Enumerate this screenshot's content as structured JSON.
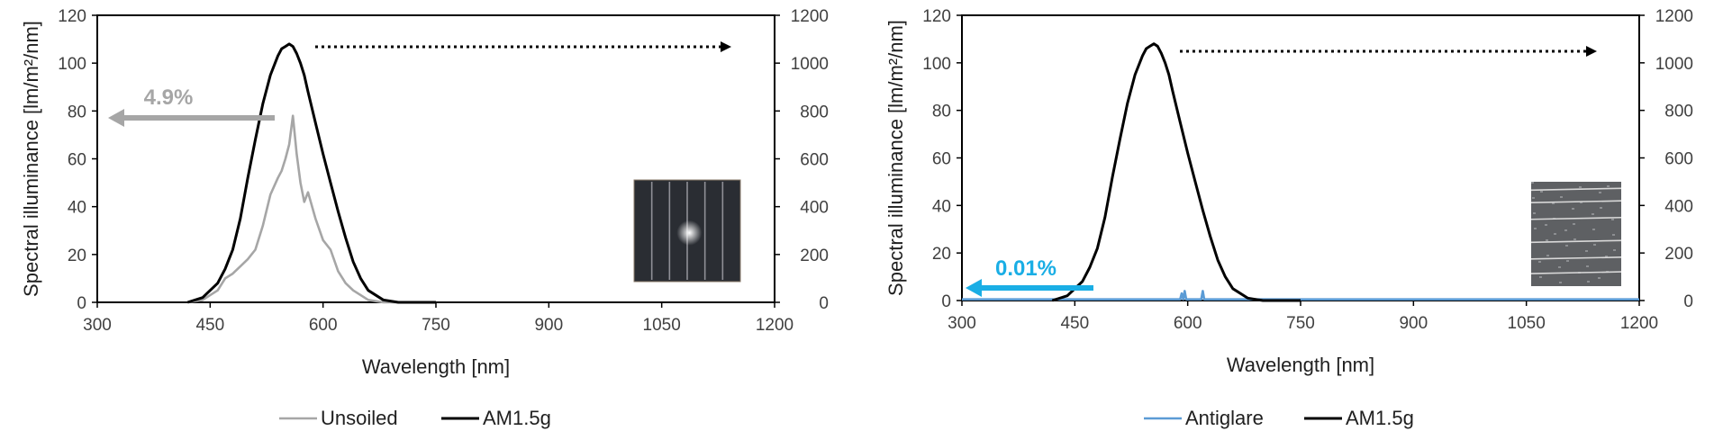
{
  "chart_data": [
    {
      "type": "line",
      "xlabel": "Wavelength [nm]",
      "ylabel": "Spectral illuminance [lm/m²/nm]",
      "xlim": [
        300,
        1200
      ],
      "ylim": [
        0,
        120
      ],
      "y2lim": [
        0,
        1200
      ],
      "xticks": [
        300,
        450,
        600,
        750,
        900,
        1050,
        1200
      ],
      "yticks": [
        0,
        20,
        40,
        60,
        80,
        100,
        120
      ],
      "y2ticks": [
        0,
        200,
        400,
        600,
        800,
        1000,
        1200
      ],
      "grid": false,
      "legend": "bottom",
      "annotation": "4.9%",
      "annotation_color": "#a6a6a6",
      "series": [
        {
          "name": "Unsoiled",
          "color": "#a6a6a6",
          "x": [
            420,
            440,
            460,
            470,
            480,
            490,
            500,
            510,
            520,
            530,
            540,
            545,
            550,
            555,
            560,
            565,
            570,
            575,
            580,
            590,
            600,
            610,
            620,
            630,
            640,
            660,
            680,
            700
          ],
          "y": [
            0,
            1,
            5,
            10,
            12,
            15,
            18,
            22,
            32,
            45,
            52,
            55,
            60,
            66,
            78,
            62,
            50,
            42,
            46,
            35,
            26,
            22,
            13,
            8,
            5,
            1,
            0,
            0
          ]
        },
        {
          "name": "AM1.5g",
          "color": "#000000",
          "x": [
            420,
            440,
            460,
            470,
            480,
            490,
            500,
            510,
            520,
            530,
            540,
            545,
            550,
            555,
            560,
            565,
            570,
            575,
            580,
            590,
            600,
            610,
            620,
            630,
            640,
            650,
            660,
            680,
            700,
            750
          ],
          "y": [
            0,
            2,
            8,
            14,
            22,
            35,
            52,
            68,
            83,
            95,
            103,
            106,
            107,
            108,
            107,
            104,
            100,
            95,
            88,
            75,
            62,
            50,
            38,
            27,
            17,
            10,
            5,
            1,
            0,
            0
          ]
        }
      ]
    },
    {
      "type": "line",
      "xlabel": "Wavelength [nm]",
      "ylabel": "Spectral illuminance [lm/m²/nm]",
      "xlim": [
        300,
        1200
      ],
      "ylim": [
        0,
        120
      ],
      "y2lim": [
        0,
        1200
      ],
      "xticks": [
        300,
        450,
        600,
        750,
        900,
        1050,
        1200
      ],
      "yticks": [
        0,
        20,
        40,
        60,
        80,
        100,
        120
      ],
      "y2ticks": [
        0,
        200,
        400,
        600,
        800,
        1000,
        1200
      ],
      "grid": false,
      "legend": "bottom",
      "annotation": "0.01%",
      "annotation_color": "#1aaee5",
      "series": [
        {
          "name": "Antiglare",
          "color": "#5b9bd5",
          "x": [
            300,
            560,
            580,
            590,
            592,
            594,
            596,
            598,
            600,
            610,
            618,
            620,
            622,
            630,
            700,
            1200
          ],
          "y": [
            0.5,
            0.5,
            0.5,
            0.5,
            3,
            0.5,
            4,
            0.5,
            0.5,
            0.5,
            0.5,
            4,
            0.5,
            0.5,
            0.5,
            0.5
          ]
        },
        {
          "name": "AM1.5g",
          "color": "#000000",
          "x": [
            420,
            440,
            460,
            470,
            480,
            490,
            500,
            510,
            520,
            530,
            540,
            545,
            550,
            555,
            560,
            565,
            570,
            575,
            580,
            590,
            600,
            610,
            620,
            630,
            640,
            650,
            660,
            680,
            700,
            750
          ],
          "y": [
            0,
            2,
            8,
            14,
            22,
            35,
            52,
            68,
            83,
            95,
            103,
            106,
            107,
            108,
            107,
            104,
            100,
            95,
            88,
            75,
            62,
            50,
            38,
            27,
            17,
            10,
            5,
            1,
            0,
            0
          ]
        }
      ]
    }
  ]
}
